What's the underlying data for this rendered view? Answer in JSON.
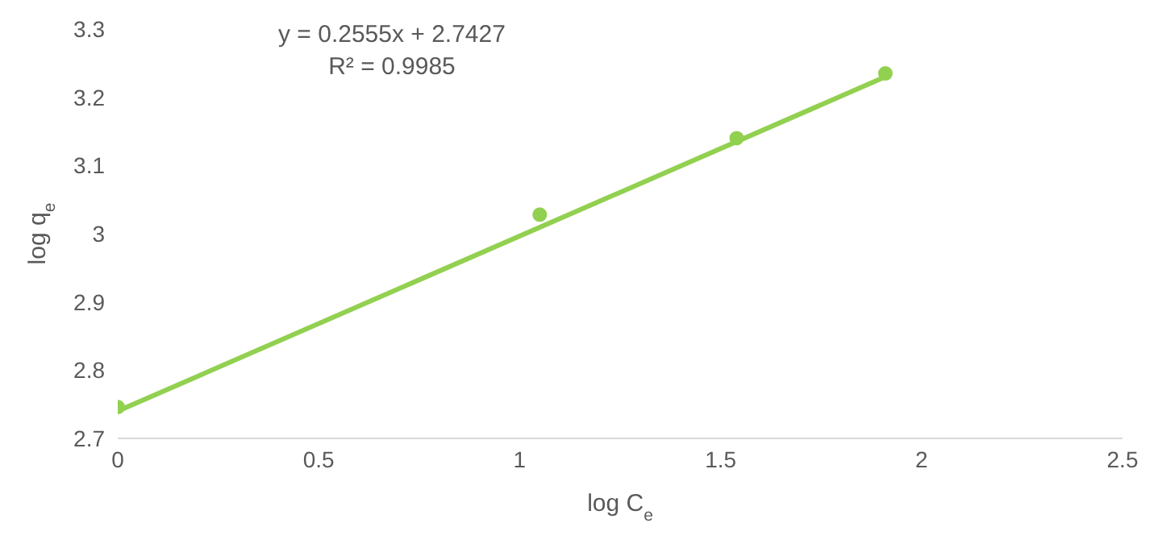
{
  "chart_data": {
    "type": "scatter",
    "xlabel": "log C$_{e}$",
    "ylabel": "log q$_{e}$",
    "annotations": [
      "y = 0.2555x + 2.7427",
      "R² = 0.9985"
    ],
    "series": [
      {
        "color": "#92d050",
        "x": [
          0,
          1.05,
          1.54,
          1.91
        ],
        "values": [
          2.746,
          3.028,
          3.14,
          3.235
        ],
        "marker": "circle"
      },
      {
        "type": "line",
        "color": "#92d050",
        "x": [
          0,
          1.91
        ],
        "values": [
          2.74,
          3.23
        ],
        "marker": "none",
        "line_style": "solid"
      }
    ],
    "xlim": [
      0,
      2.5
    ],
    "xticks": [
      0,
      0.5,
      1,
      1.5,
      2,
      2.5
    ],
    "ylim": [
      2.7,
      3.3
    ],
    "yticks": [
      2.7,
      2.8,
      2.9,
      3,
      3.1,
      3.2,
      3.3
    ]
  }
}
